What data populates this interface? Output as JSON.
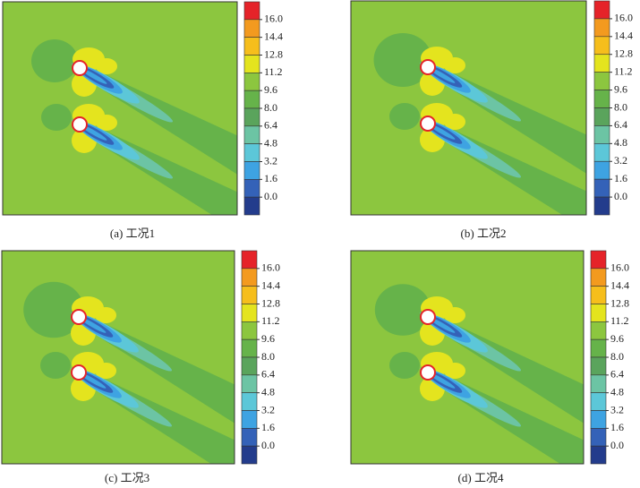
{
  "panels": [
    {
      "caption": "(a) 工况1"
    },
    {
      "caption": "(b) 工况2"
    },
    {
      "caption": "(c) 工况3"
    },
    {
      "caption": "(d) 工况4"
    }
  ],
  "colorbar": {
    "ticks": [
      {
        "value": 16,
        "label": "16.0"
      },
      {
        "value": 14.4,
        "label": "14.4"
      },
      {
        "value": 12.8,
        "label": "12.8"
      },
      {
        "value": 11.2,
        "label": "11.2"
      },
      {
        "value": 9.6,
        "label": "9.6"
      },
      {
        "value": 8,
        "label": "8.0"
      },
      {
        "value": 6.4,
        "label": "6.4"
      },
      {
        "value": 4.8,
        "label": "4.8"
      },
      {
        "value": 3.2,
        "label": "3.2"
      },
      {
        "value": 1.6,
        "label": "1.6"
      },
      {
        "value": 0,
        "label": "0.0"
      }
    ],
    "colors": [
      "#e52329",
      "#f39a1f",
      "#f6be1c",
      "#e4e41e",
      "#8cc63f",
      "#66b34a",
      "#5aa45c",
      "#6cc4a4",
      "#5cc7d8",
      "#3ea3e2",
      "#3462b8",
      "#233c8c"
    ]
  }
}
